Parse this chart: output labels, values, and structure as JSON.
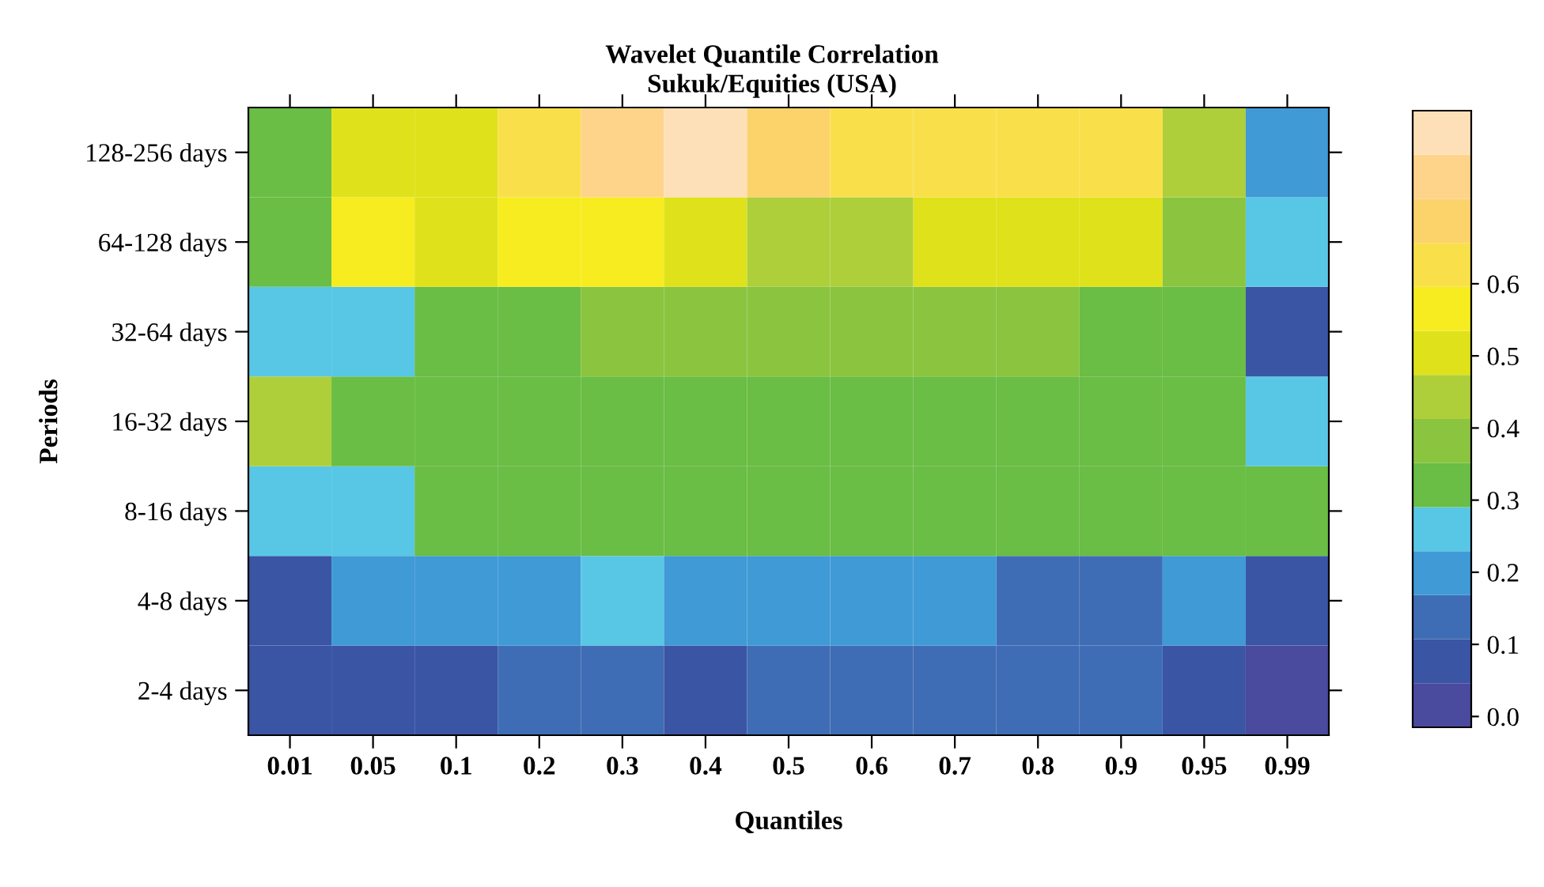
{
  "chart_data": {
    "type": "heatmap",
    "title": "Wavelet Quantile Correlation\nSukuk/Equities (USA)",
    "xlabel": "Quantiles",
    "ylabel": "Periods",
    "categories": [
      "0.01",
      "0.05",
      "0.1",
      "0.2",
      "0.3",
      "0.4",
      "0.5",
      "0.6",
      "0.7",
      "0.8",
      "0.9",
      "0.95",
      "0.99"
    ],
    "y_categories": [
      "128-256 days",
      "64-128 days",
      "32-64 days",
      "16-32 days",
      "8-16 days",
      "4-8 days",
      "2-4 days"
    ],
    "cells": [
      [
        0.32,
        0.5,
        0.5,
        0.62,
        0.74,
        0.81,
        0.68,
        0.62,
        0.62,
        0.62,
        0.62,
        0.44,
        0.2
      ],
      [
        0.32,
        0.56,
        0.5,
        0.56,
        0.56,
        0.5,
        0.44,
        0.44,
        0.5,
        0.5,
        0.5,
        0.38,
        0.26
      ],
      [
        0.26,
        0.26,
        0.32,
        0.32,
        0.38,
        0.38,
        0.38,
        0.38,
        0.38,
        0.38,
        0.32,
        0.32,
        0.08
      ],
      [
        0.44,
        0.32,
        0.32,
        0.32,
        0.32,
        0.32,
        0.32,
        0.32,
        0.32,
        0.32,
        0.32,
        0.32,
        0.26
      ],
      [
        0.26,
        0.26,
        0.32,
        0.32,
        0.32,
        0.32,
        0.32,
        0.32,
        0.32,
        0.32,
        0.32,
        0.32,
        0.32
      ],
      [
        0.08,
        0.2,
        0.2,
        0.2,
        0.26,
        0.2,
        0.2,
        0.2,
        0.2,
        0.14,
        0.14,
        0.2,
        0.08
      ],
      [
        0.08,
        0.08,
        0.08,
        0.14,
        0.14,
        0.08,
        0.14,
        0.14,
        0.14,
        0.14,
        0.14,
        0.08,
        0.02
      ]
    ],
    "clim": [
      -0.015,
      0.84
    ],
    "cticks": [
      {
        "value": 0,
        "label": "0.0"
      },
      0.1,
      0.2,
      0.3,
      0.4,
      0.5,
      0.6
    ]
  }
}
